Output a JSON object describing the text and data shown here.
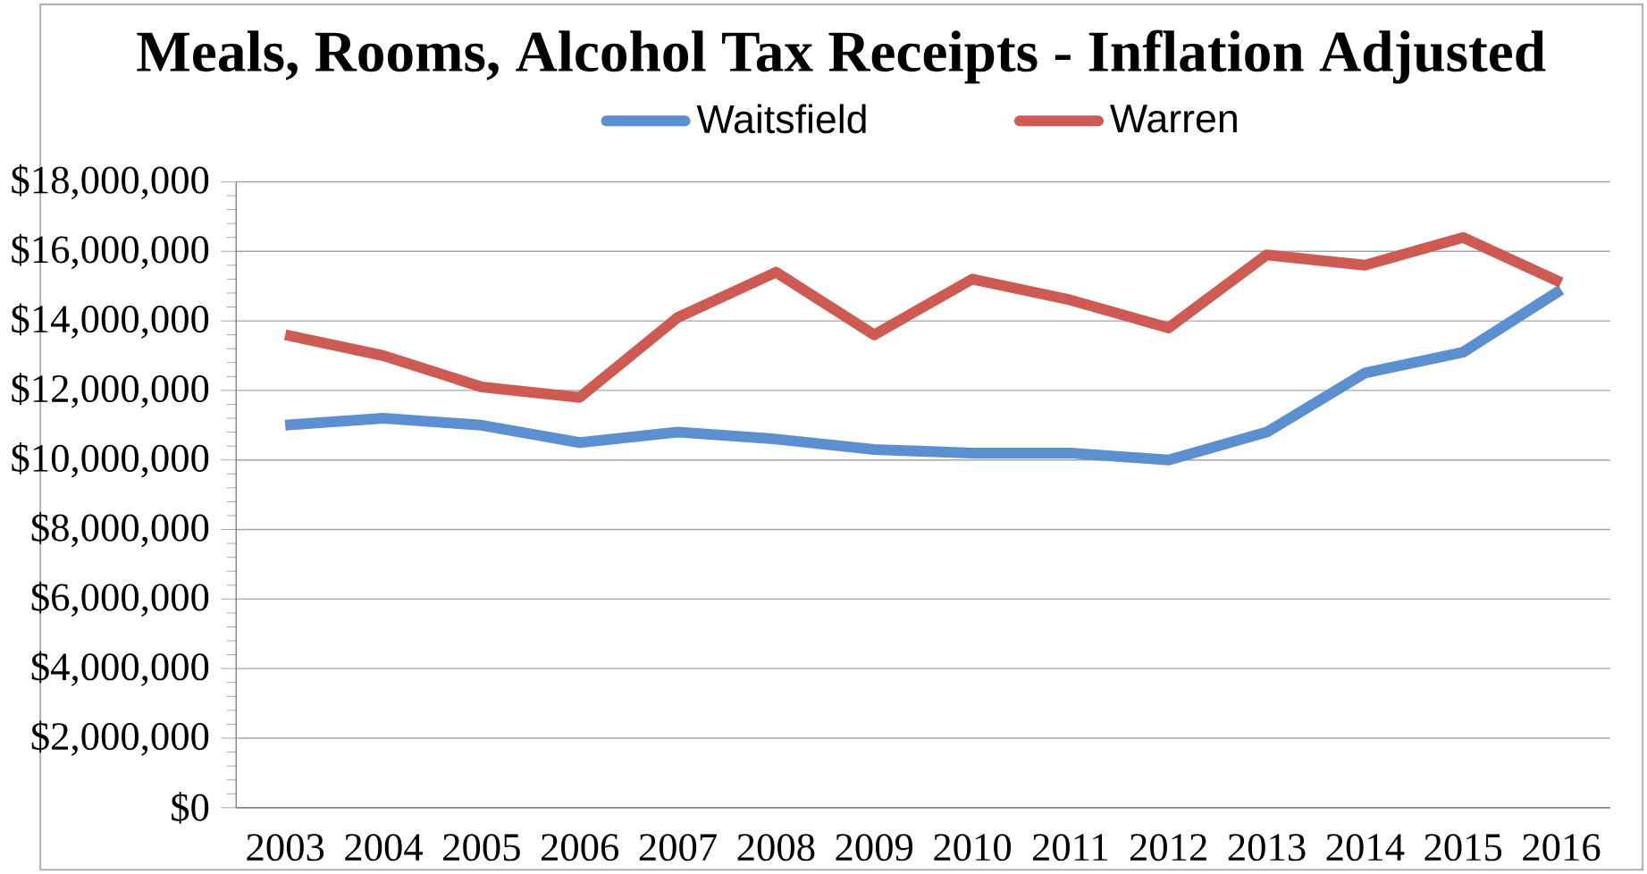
{
  "chart_data": {
    "type": "line",
    "title": "Meals, Rooms, Alcohol Tax Receipts - Inflation Adjusted",
    "categories": [
      "2003",
      "2004",
      "2005",
      "2006",
      "2007",
      "2008",
      "2009",
      "2010",
      "2011",
      "2012",
      "2013",
      "2014",
      "2015",
      "2016"
    ],
    "series": [
      {
        "name": "Waitsfield",
        "color": "#5b8fcf",
        "values": [
          11000000,
          11200000,
          11000000,
          10500000,
          10800000,
          10600000,
          10300000,
          10200000,
          10200000,
          10000000,
          10800000,
          12500000,
          13100000,
          14900000
        ]
      },
      {
        "name": "Warren",
        "color": "#cd5b54",
        "values": [
          13600000,
          13000000,
          12100000,
          11800000,
          14100000,
          15400000,
          13600000,
          15200000,
          14600000,
          13800000,
          15900000,
          15600000,
          16400000,
          15100000
        ]
      }
    ],
    "ylim": [
      0,
      18000000
    ],
    "yticks": [
      {
        "value": 0,
        "label": "$0"
      },
      {
        "value": 2000000,
        "label": "$2,000,000"
      },
      {
        "value": 4000000,
        "label": "$4,000,000"
      },
      {
        "value": 6000000,
        "label": "$6,000,000"
      },
      {
        "value": 8000000,
        "label": "$8,000,000"
      },
      {
        "value": 10000000,
        "label": "$10,000,000"
      },
      {
        "value": 12000000,
        "label": "$12,000,000"
      },
      {
        "value": 14000000,
        "label": "$14,000,000"
      },
      {
        "value": 16000000,
        "label": "$16,000,000"
      },
      {
        "value": 18000000,
        "label": "$18,000,000"
      }
    ],
    "grid": "y",
    "legend": "top",
    "marker": "none",
    "line_style": "solid"
  }
}
